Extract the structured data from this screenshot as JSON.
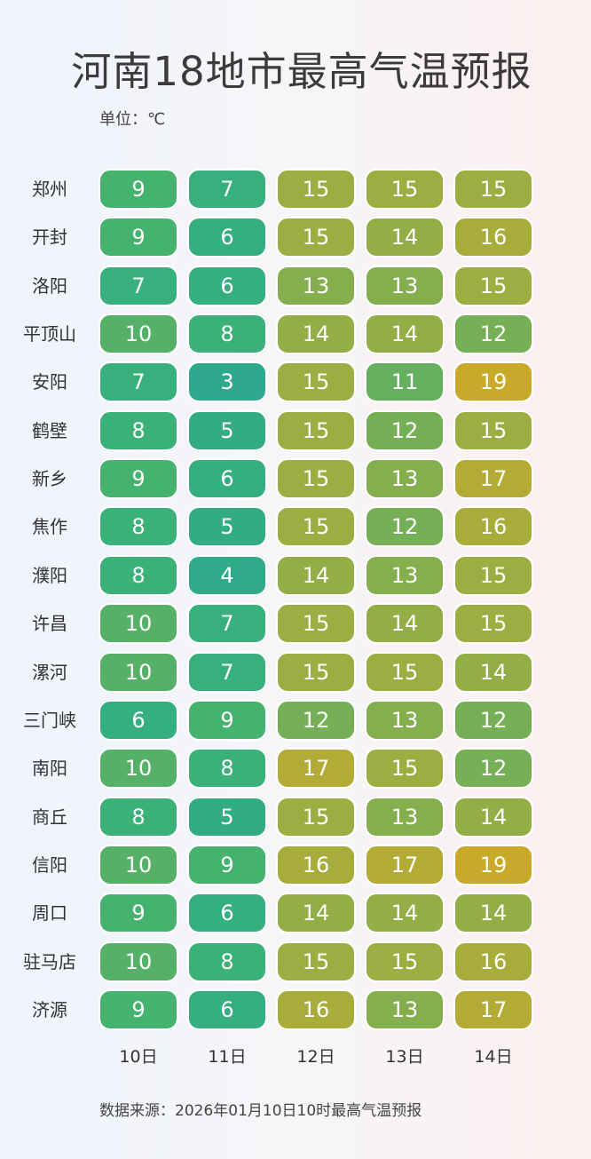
{
  "title": "河南18地市最高气温预报",
  "unit_label": "单位：℃",
  "source": "数据来源：2026年01月10日10时最高气温预报",
  "chart_data": {
    "type": "heatmap",
    "x": [
      "10日",
      "11日",
      "12日",
      "13日",
      "14日"
    ],
    "y": [
      "郑州",
      "开封",
      "洛阳",
      "平顶山",
      "安阳",
      "鹤壁",
      "新乡",
      "焦作",
      "濮阳",
      "许昌",
      "漯河",
      "三门峡",
      "南阳",
      "商丘",
      "信阳",
      "周口",
      "驻马店",
      "济源"
    ],
    "values": [
      [
        9,
        7,
        15,
        15,
        15
      ],
      [
        9,
        6,
        15,
        14,
        16
      ],
      [
        7,
        6,
        13,
        13,
        15
      ],
      [
        10,
        8,
        14,
        14,
        12
      ],
      [
        7,
        3,
        15,
        11,
        19
      ],
      [
        8,
        5,
        15,
        12,
        15
      ],
      [
        9,
        6,
        15,
        13,
        17
      ],
      [
        8,
        5,
        15,
        12,
        16
      ],
      [
        8,
        4,
        14,
        13,
        15
      ],
      [
        10,
        7,
        15,
        14,
        15
      ],
      [
        10,
        7,
        15,
        15,
        14
      ],
      [
        6,
        9,
        12,
        13,
        12
      ],
      [
        10,
        8,
        17,
        15,
        12
      ],
      [
        8,
        5,
        15,
        13,
        14
      ],
      [
        10,
        9,
        16,
        17,
        19
      ],
      [
        9,
        6,
        14,
        14,
        14
      ],
      [
        10,
        8,
        15,
        15,
        16
      ],
      [
        9,
        6,
        16,
        13,
        17
      ]
    ],
    "color_range": [
      3,
      19
    ],
    "colors": [
      "#2ea98e",
      "#3bb276",
      "#8fae48",
      "#c9a92a"
    ]
  }
}
